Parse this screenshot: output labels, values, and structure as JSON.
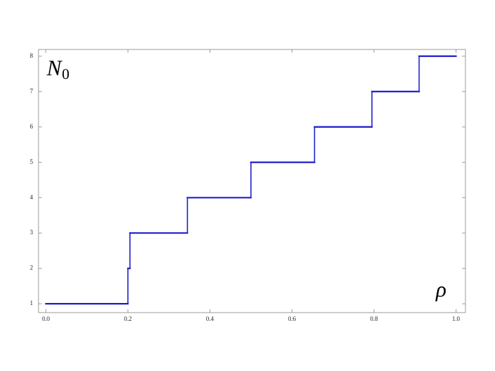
{
  "chart_data": {
    "type": "step",
    "x_label": "ρ",
    "y_label": "N",
    "y_label_subscript": "0",
    "x": [
      0,
      0.2,
      0.205,
      0.345,
      0.5,
      0.655,
      0.795,
      0.91,
      1.0
    ],
    "values": [
      1,
      2,
      3,
      4,
      5,
      6,
      7,
      8,
      8
    ],
    "color": "#1a1acc",
    "xlim": [
      -0.018,
      1.023
    ],
    "ylim": [
      0.75,
      8.19
    ],
    "xticks": [
      {
        "value": 0,
        "label": "0.0"
      },
      0.2,
      0.4,
      0.6,
      0.8,
      {
        "value": 1,
        "label": "1.0"
      }
    ],
    "yticks": [
      1,
      2,
      3,
      4,
      5,
      6,
      7,
      8
    ]
  }
}
